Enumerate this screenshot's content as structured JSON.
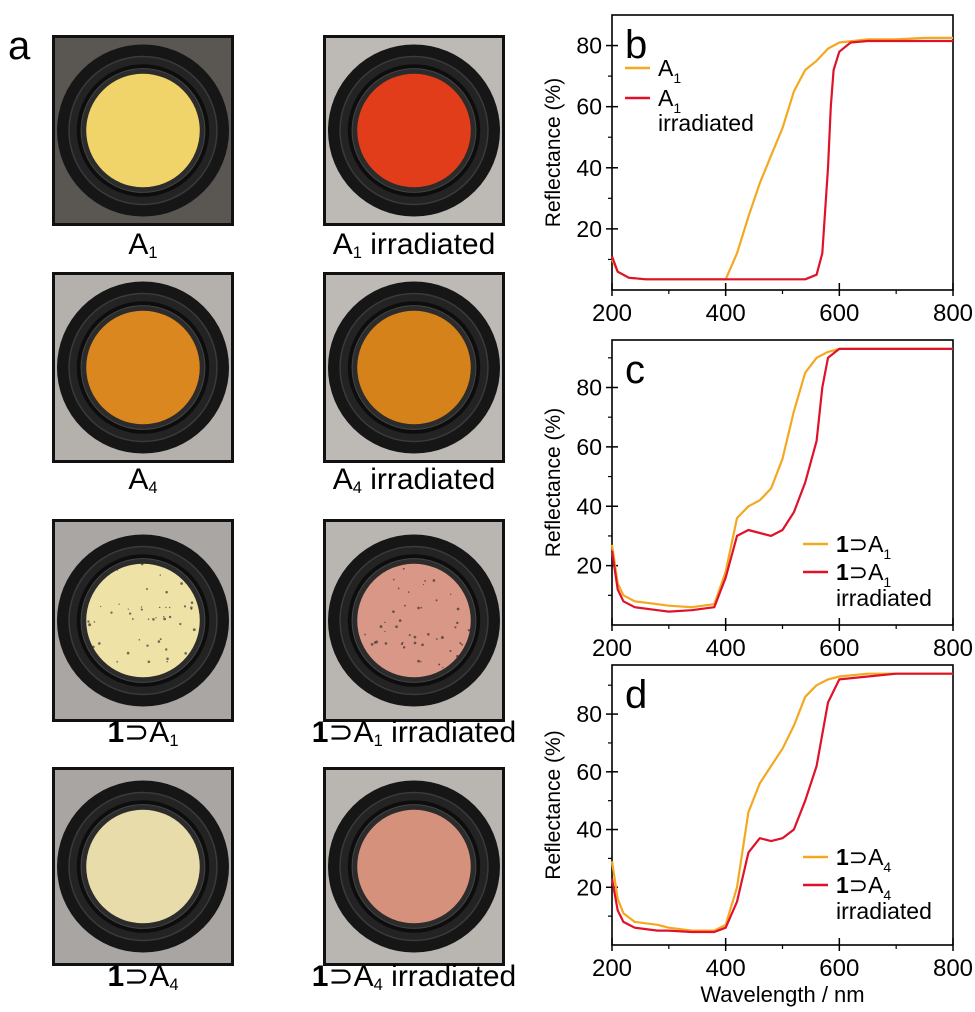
{
  "panels": {
    "a": {
      "letter": "a"
    },
    "b": {
      "letter": "b"
    },
    "c": {
      "letter": "c"
    },
    "d": {
      "letter": "d"
    }
  },
  "photos": [
    {
      "id": "A1",
      "bold": "",
      "base": "A",
      "sub": "1",
      "suffix": "",
      "disc_color": "#f1d469",
      "bg_color": "#5a5652",
      "style": "solid"
    },
    {
      "id": "A1-irr",
      "bold": "",
      "base": "A",
      "sub": "1",
      "suffix": " irradiated",
      "disc_color": "#e23d1a",
      "bg_color": "#bdb9b4",
      "style": "solid"
    },
    {
      "id": "A4",
      "bold": "",
      "base": "A",
      "sub": "4",
      "suffix": "",
      "disc_color": "#d9871e",
      "bg_color": "#b4b0ac",
      "style": "solid"
    },
    {
      "id": "A4-irr",
      "bold": "",
      "base": "A",
      "sub": "4",
      "suffix": " irradiated",
      "disc_color": "#d6821b",
      "bg_color": "#bdb9b4",
      "style": "solid"
    },
    {
      "id": "1A1",
      "bold": "1",
      "base": "⊃A",
      "sub": "1",
      "suffix": "",
      "disc_color": "#efe2a6",
      "bg_color": "#a9a6a3",
      "style": "speckled"
    },
    {
      "id": "1A1-irr",
      "bold": "1",
      "base": "⊃A",
      "sub": "1",
      "suffix": " irradiated",
      "disc_color": "#d99887",
      "bg_color": "#b9b5b1",
      "style": "speckled"
    },
    {
      "id": "1A4",
      "bold": "1",
      "base": "⊃A",
      "sub": "4",
      "suffix": "",
      "disc_color": "#e9dcab",
      "bg_color": "#a8a5a2",
      "style": "solid"
    },
    {
      "id": "1A4-irr",
      "bold": "1",
      "base": "⊃A",
      "sub": "4",
      "suffix": " irradiated",
      "disc_color": "#d5917c",
      "bg_color": "#b9b5b1",
      "style": "solid"
    }
  ],
  "colors": {
    "original": "#f4a81f",
    "irradiated": "#e0122a"
  },
  "chart_data": [
    {
      "panel": "b",
      "type": "line",
      "xlabel": "",
      "ylabel": "Reflectance (%)",
      "xlim": [
        200,
        800
      ],
      "ylim": [
        0,
        90
      ],
      "xticks": [
        200,
        400,
        600,
        800
      ],
      "yticks": [
        20,
        40,
        60,
        80
      ],
      "grid": false,
      "legend_position": "top-left",
      "series": [
        {
          "legend": {
            "bold": "",
            "base": "A",
            "sub": "1",
            "line2": ""
          },
          "color": "#f4a81f",
          "x": [
            200,
            210,
            230,
            260,
            300,
            340,
            380,
            400,
            420,
            440,
            460,
            480,
            500,
            520,
            540,
            560,
            580,
            600,
            650,
            700,
            750,
            800
          ],
          "y": [
            10,
            6,
            4,
            3.5,
            3.5,
            3.5,
            3.5,
            3.5,
            12,
            24,
            35,
            44,
            53,
            65,
            72,
            75,
            79,
            81,
            82,
            82,
            82.5,
            82.5
          ]
        },
        {
          "legend": {
            "bold": "",
            "base": "A",
            "sub": "1",
            "line2": "irradiated"
          },
          "color": "#e0122a",
          "x": [
            200,
            210,
            230,
            260,
            300,
            400,
            500,
            540,
            560,
            570,
            580,
            585,
            590,
            600,
            620,
            650,
            700,
            750,
            800
          ],
          "y": [
            11,
            6,
            4,
            3.5,
            3.5,
            3.5,
            3.5,
            3.5,
            5,
            12,
            40,
            60,
            72,
            78,
            81,
            81.5,
            81.5,
            81.5,
            81.5
          ]
        }
      ]
    },
    {
      "panel": "c",
      "type": "line",
      "xlabel": "",
      "ylabel": "Reflectance (%)",
      "xlim": [
        200,
        800
      ],
      "ylim": [
        0,
        96
      ],
      "xticks": [
        200,
        400,
        600,
        800
      ],
      "yticks": [
        20,
        40,
        60,
        80
      ],
      "grid": false,
      "legend_position": "bottom-right",
      "series": [
        {
          "legend": {
            "bold": "1",
            "base": "⊃A",
            "sub": "1",
            "line2": ""
          },
          "color": "#f4a81f",
          "x": [
            200,
            210,
            220,
            240,
            280,
            300,
            340,
            380,
            400,
            420,
            440,
            460,
            480,
            500,
            520,
            540,
            560,
            580,
            600,
            650,
            700,
            800
          ],
          "y": [
            27,
            14,
            10,
            8,
            7,
            6.5,
            6,
            7,
            18,
            36,
            40,
            42,
            46,
            56,
            72,
            85,
            90,
            92,
            93,
            93,
            93,
            93
          ]
        },
        {
          "legend": {
            "bold": "1",
            "base": "⊃A",
            "sub": "1",
            "line2": "irradiated"
          },
          "color": "#e0122a",
          "x": [
            200,
            210,
            220,
            240,
            280,
            300,
            340,
            380,
            400,
            420,
            440,
            460,
            480,
            500,
            520,
            540,
            550,
            560,
            570,
            580,
            600,
            650,
            700,
            800
          ],
          "y": [
            25,
            12,
            8,
            6,
            5,
            4.5,
            5,
            6,
            16,
            30,
            32,
            31,
            30,
            32,
            38,
            48,
            55,
            62,
            80,
            90,
            93,
            93,
            93,
            93
          ]
        }
      ]
    },
    {
      "panel": "d",
      "type": "line",
      "xlabel": "Wavelength / nm",
      "ylabel": "Reflectance (%)",
      "xlim": [
        200,
        800
      ],
      "ylim": [
        0,
        97
      ],
      "xticks": [
        200,
        400,
        600,
        800
      ],
      "yticks": [
        20,
        40,
        60,
        80
      ],
      "grid": false,
      "legend_position": "bottom-right",
      "series": [
        {
          "legend": {
            "bold": "1",
            "base": "⊃A",
            "sub": "4",
            "line2": ""
          },
          "color": "#f4a81f",
          "x": [
            200,
            210,
            220,
            240,
            280,
            300,
            340,
            380,
            400,
            420,
            440,
            460,
            480,
            500,
            520,
            540,
            560,
            580,
            600,
            650,
            700,
            800
          ],
          "y": [
            29,
            16,
            11,
            8,
            7,
            6,
            5,
            5,
            7,
            20,
            46,
            56,
            62,
            68,
            76,
            86,
            90,
            92,
            93,
            94,
            94,
            94
          ]
        },
        {
          "legend": {
            "bold": "1",
            "base": "⊃A",
            "sub": "4",
            "line2": "irradiated"
          },
          "color": "#e0122a",
          "x": [
            200,
            210,
            220,
            240,
            280,
            300,
            340,
            380,
            400,
            420,
            440,
            460,
            480,
            500,
            520,
            540,
            560,
            580,
            600,
            650,
            700,
            800
          ],
          "y": [
            23,
            12,
            8,
            6,
            5,
            5,
            4.5,
            4.5,
            6,
            15,
            32,
            37,
            36,
            37,
            40,
            50,
            62,
            84,
            92,
            93,
            94,
            94
          ]
        }
      ]
    }
  ]
}
